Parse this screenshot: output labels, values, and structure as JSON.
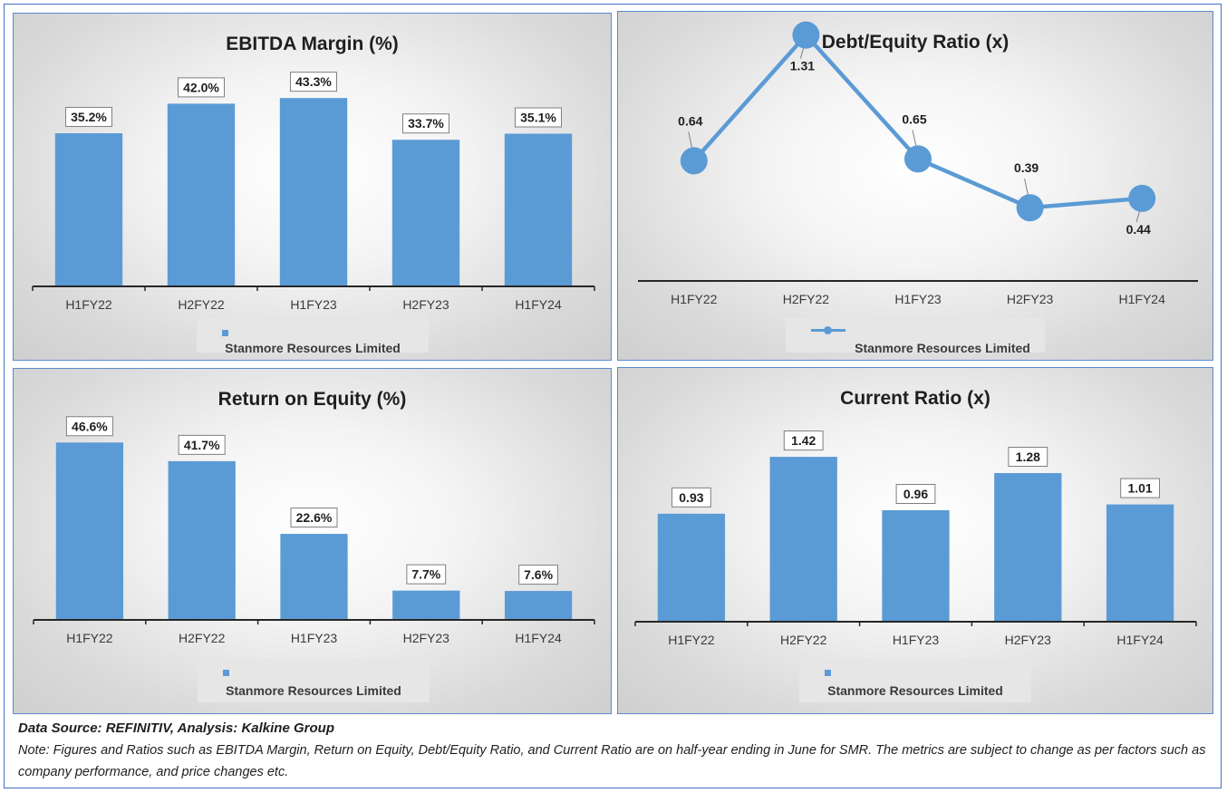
{
  "chart_data": [
    {
      "id": "ebitda",
      "type": "bar",
      "title": "EBITDA Margin (%)",
      "categories": [
        "H1FY22",
        "H2FY22",
        "H1FY23",
        "H2FY23",
        "H1FY24"
      ],
      "series": [
        {
          "name": "Stanmore Resources Limited",
          "values": [
            35.2,
            42.0,
            43.3,
            33.7,
            35.1
          ]
        }
      ],
      "data_labels": [
        "35.2%",
        "42.0%",
        "43.3%",
        "33.7%",
        "35.1%"
      ],
      "ylim": [
        0,
        50
      ],
      "grid": false,
      "legend": "bottom",
      "color": "#5b9bd5"
    },
    {
      "id": "de",
      "type": "line",
      "title": "Debt/Equity Ratio (x)",
      "categories": [
        "H1FY22",
        "H2FY22",
        "H1FY23",
        "H2FY23",
        "H1FY24"
      ],
      "series": [
        {
          "name": "Stanmore Resources Limited",
          "values": [
            0.64,
            1.31,
            0.65,
            0.39,
            0.44
          ]
        }
      ],
      "data_labels": [
        "0.64",
        "1.31",
        "0.65",
        "0.39",
        "0.44"
      ],
      "ylim": [
        0,
        1.4
      ],
      "grid": false,
      "legend": "bottom",
      "color": "#5b9bd5"
    },
    {
      "id": "roe",
      "type": "bar",
      "title": "Return on Equity (%)",
      "categories": [
        "H1FY22",
        "H2FY22",
        "H1FY23",
        "H2FY23",
        "H1FY24"
      ],
      "series": [
        {
          "name": "Stanmore Resources Limited",
          "values": [
            46.6,
            41.7,
            22.6,
            7.7,
            7.6
          ]
        }
      ],
      "data_labels": [
        "46.6%",
        "41.7%",
        "22.6%",
        "7.7%",
        "7.6%"
      ],
      "ylim": [
        0,
        50
      ],
      "grid": false,
      "legend": "bottom",
      "color": "#5b9bd5"
    },
    {
      "id": "cr",
      "type": "bar",
      "title": "Current Ratio (x)",
      "categories": [
        "H1FY22",
        "H2FY22",
        "H1FY23",
        "H2FY23",
        "H1FY24"
      ],
      "series": [
        {
          "name": "Stanmore Resources Limited",
          "values": [
            0.93,
            1.42,
            0.96,
            1.28,
            1.01
          ]
        }
      ],
      "data_labels": [
        "0.93",
        "1.42",
        "0.96",
        "1.28",
        "1.01"
      ],
      "ylim": [
        0,
        1.6
      ],
      "grid": false,
      "legend": "bottom",
      "color": "#5b9bd5"
    }
  ],
  "footer": {
    "source": "Data Source: REFINITIV, Analysis: Kalkine Group",
    "note": "Note: Figures and Ratios such as EBITDA Margin, Return on Equity, Debt/Equity Ratio, and Current Ratio are on half-year ending in June for SMR. The metrics are subject to change as per factors such as company performance, and price changes etc."
  }
}
